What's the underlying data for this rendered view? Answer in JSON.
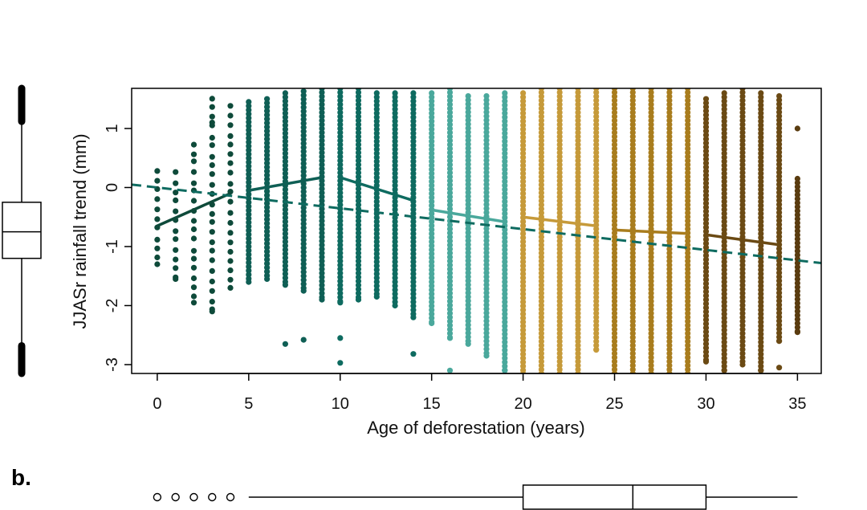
{
  "panel_label": "b.",
  "chart_data": {
    "type": "scatter",
    "title": "",
    "xlabel": "Age of deforestation (years)",
    "ylabel": "JJASr rainfall trend (mm)",
    "xlim": [
      -1.4,
      36.3
    ],
    "ylim": [
      -3.15,
      1.68
    ],
    "xticks": [
      0,
      5,
      10,
      15,
      20,
      25,
      30,
      35
    ],
    "yticks": [
      -3,
      -2,
      -1,
      0,
      1
    ],
    "grid": false,
    "colors": {
      "x0_4": "#0e4a3a",
      "x5_9": "#0f5f55",
      "x10_14": "#0e6b60",
      "x15_19": "#4aa89c",
      "x20_24": "#c69a3a",
      "x25_29": "#a97d1e",
      "x30_34": "#6b4a14",
      "x35": "#5a3c10",
      "trend": "#0e6b60"
    },
    "columns": [
      {
        "x": 0,
        "min": -1.3,
        "max": 0.28
      },
      {
        "x": 1,
        "min": -1.55,
        "max": 0.25
      },
      {
        "x": 2,
        "min": -1.95,
        "max": 0.75
      },
      {
        "x": 3,
        "min": -2.1,
        "max": 1.52
      },
      {
        "x": 4,
        "min": -1.7,
        "max": 1.38
      },
      {
        "x": 5,
        "min": -1.6,
        "max": 1.45
      },
      {
        "x": 6,
        "min": -1.55,
        "max": 1.5
      },
      {
        "x": 7,
        "min": -1.65,
        "max": 1.6
      },
      {
        "x": 8,
        "min": -1.75,
        "max": 1.63
      },
      {
        "x": 9,
        "min": -1.9,
        "max": 1.68
      },
      {
        "x": 10,
        "min": -1.95,
        "max": 1.68
      },
      {
        "x": 11,
        "min": -1.9,
        "max": 1.68
      },
      {
        "x": 12,
        "min": -1.85,
        "max": 1.6
      },
      {
        "x": 13,
        "min": -2.0,
        "max": 1.6
      },
      {
        "x": 14,
        "min": -2.2,
        "max": 1.6
      },
      {
        "x": 15,
        "min": -2.3,
        "max": 1.6
      },
      {
        "x": 16,
        "min": -2.55,
        "max": 1.68
      },
      {
        "x": 17,
        "min": -2.65,
        "max": 1.55
      },
      {
        "x": 18,
        "min": -2.85,
        "max": 1.55
      },
      {
        "x": 19,
        "min": -3.1,
        "max": 1.6
      },
      {
        "x": 20,
        "min": -3.15,
        "max": 1.6
      },
      {
        "x": 21,
        "min": -3.15,
        "max": 1.68
      },
      {
        "x": 22,
        "min": -3.15,
        "max": 1.68
      },
      {
        "x": 23,
        "min": -3.15,
        "max": 1.68
      },
      {
        "x": 24,
        "min": -2.75,
        "max": 1.68
      },
      {
        "x": 25,
        "min": -3.15,
        "max": 1.68
      },
      {
        "x": 26,
        "min": -3.15,
        "max": 1.68
      },
      {
        "x": 27,
        "min": -3.15,
        "max": 1.68
      },
      {
        "x": 28,
        "min": -3.15,
        "max": 1.68
      },
      {
        "x": 29,
        "min": -3.15,
        "max": 1.68
      },
      {
        "x": 30,
        "min": -2.95,
        "max": 1.5
      },
      {
        "x": 31,
        "min": -3.1,
        "max": 1.6
      },
      {
        "x": 32,
        "min": -3.0,
        "max": 1.68
      },
      {
        "x": 33,
        "min": -3.1,
        "max": 1.6
      },
      {
        "x": 34,
        "min": -2.6,
        "max": 1.55
      },
      {
        "x": 35,
        "min": -2.45,
        "max": 0.15
      }
    ],
    "outliers": [
      {
        "x": 35,
        "y": 1.0
      },
      {
        "x": 8,
        "y": -2.58
      },
      {
        "x": 7,
        "y": -2.65
      },
      {
        "x": 10,
        "y": -2.55
      },
      {
        "x": 10,
        "y": -2.97
      },
      {
        "x": 14,
        "y": -2.82
      },
      {
        "x": 16,
        "y": -3.1
      },
      {
        "x": 19,
        "y": -3.1
      },
      {
        "x": 33,
        "y": -3.1
      },
      {
        "x": 34,
        "y": -3.05
      },
      {
        "x": 3,
        "y": 1.1
      }
    ],
    "segment_trends": [
      {
        "x": [
          0,
          4
        ],
        "y": [
          -0.65,
          -0.1
        ],
        "color": "#0e4a3a"
      },
      {
        "x": [
          5,
          9
        ],
        "y": [
          -0.05,
          0.17
        ],
        "color": "#0f5f55"
      },
      {
        "x": [
          10,
          14
        ],
        "y": [
          0.17,
          -0.22
        ],
        "color": "#0e6b60"
      },
      {
        "x": [
          15,
          19
        ],
        "y": [
          -0.38,
          -0.58
        ],
        "color": "#4aa89c"
      },
      {
        "x": [
          20,
          24
        ],
        "y": [
          -0.5,
          -0.65
        ],
        "color": "#c69a3a"
      },
      {
        "x": [
          25,
          29
        ],
        "y": [
          -0.72,
          -0.78
        ],
        "color": "#a97d1e"
      },
      {
        "x": [
          30,
          34
        ],
        "y": [
          -0.8,
          -0.97
        ],
        "color": "#6b4a14"
      }
    ],
    "overall_trend": {
      "x": [
        -1.4,
        36.3
      ],
      "y": [
        0.05,
        -1.28
      ],
      "style": "dashed"
    },
    "y_marginal_boxplot": {
      "q1": -1.2,
      "median": -0.75,
      "q3": -0.25,
      "whisker_low": -3.15,
      "whisker_high": 1.68
    },
    "x_marginal_boxplot": {
      "q1": 20,
      "median": 26,
      "q3": 30,
      "whisker_low": 5,
      "whisker_high": 35,
      "outliers": [
        0,
        1,
        2,
        3,
        4
      ]
    }
  }
}
